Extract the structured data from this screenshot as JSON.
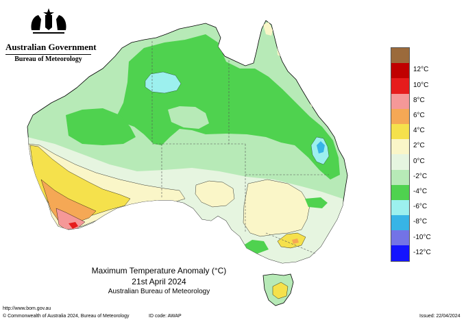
{
  "header": {
    "government": "Australian Government",
    "bureau": "Bureau of Meteorology"
  },
  "title": {
    "main": "Maximum Temperature Anomaly (°C)",
    "date": "21st April 2024",
    "source": "Australian Bureau of Meteorology"
  },
  "legend": [
    {
      "label": "",
      "color": "#9b6a3b"
    },
    {
      "label": "12°C",
      "color": "#c00000"
    },
    {
      "label": "10°C",
      "color": "#e61c1c"
    },
    {
      "label": "8°C",
      "color": "#f59898"
    },
    {
      "label": "6°C",
      "color": "#f5a855"
    },
    {
      "label": "4°C",
      "color": "#f5e14c"
    },
    {
      "label": "2°C",
      "color": "#faf6c8"
    },
    {
      "label": "0°C",
      "color": "#e6f5e0"
    },
    {
      "label": "-2°C",
      "color": "#b7eab7"
    },
    {
      "label": "-4°C",
      "color": "#4fd24f"
    },
    {
      "label": "-6°C",
      "color": "#9cf0ee"
    },
    {
      "label": "-8°C",
      "color": "#37b4e6"
    },
    {
      "label": "-10°C",
      "color": "#7373e6"
    },
    {
      "label": "-12°C",
      "color": "#1414ff"
    }
  ],
  "map": {
    "colors": {
      "land": "#b7eab7",
      "green": "#4fd24f",
      "cyan": "#9cf0ee",
      "blue": "#37b4e6",
      "cream": "#faf6c8",
      "yellow": "#f5e14c",
      "orange": "#f5a855",
      "pink": "#f59898",
      "red": "#e61c1c",
      "pale": "#e6f5e0"
    }
  },
  "footer": {
    "url": "http://www.bom.gov.au",
    "copyright": "© Commonwealth of Australia 2024, Bureau of Meteorology",
    "id_code": "ID code: AWAP",
    "issued": "Issued: 22/04/2024"
  }
}
